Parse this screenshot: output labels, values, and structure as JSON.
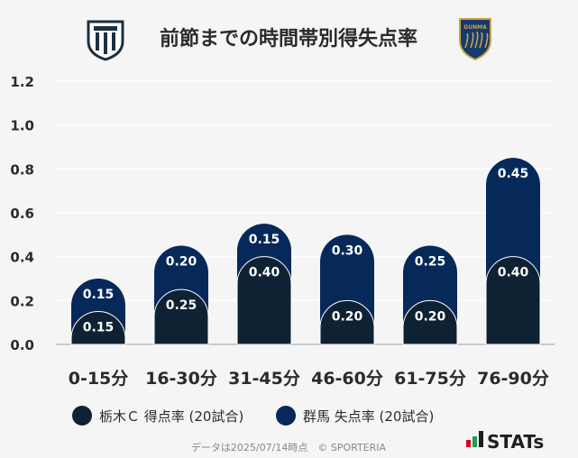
{
  "colors": {
    "home": "#0e2233",
    "away": "#06295a",
    "grid": "#ffffff",
    "axis": "#bbbbbb",
    "stats_red": "#d0021b",
    "stats_green": "#1f9d55",
    "emblem_home": "#1d3040",
    "emblem_away": "#173a6e",
    "emblem_gold": "#c8a445"
  },
  "icons": {
    "home_emblem": "tochigi-c-emblem-icon",
    "away_emblem": "gunma-emblem-icon",
    "stats_logo": "stats-logo-icon"
  },
  "away_emblem_text": "GUNMA",
  "chart_data": {
    "type": "bar",
    "stacked": true,
    "title": "前節までの時間帯別得失点率",
    "categories": [
      "0-15分",
      "16-30分",
      "31-45分",
      "46-60分",
      "61-75分",
      "76-90分"
    ],
    "series": [
      {
        "name": "栃木Ｃ 得点率 (20試合)",
        "values": [
          0.15,
          0.25,
          0.4,
          0.2,
          0.2,
          0.4
        ],
        "value_labels": [
          "0.15",
          "0.25",
          "0.40",
          "0.20",
          "0.20",
          "0.40"
        ]
      },
      {
        "name": "群馬 失点率 (20試合)",
        "values": [
          0.15,
          0.2,
          0.15,
          0.3,
          0.25,
          0.45
        ],
        "value_labels": [
          "0.15",
          "0.20",
          "0.15",
          "0.30",
          "0.25",
          "0.45"
        ]
      }
    ],
    "yticks": [
      "0.0",
      "0.2",
      "0.4",
      "0.6",
      "0.8",
      "1.0",
      "1.2"
    ],
    "ylim": [
      0,
      1.2
    ],
    "grid": true,
    "xlabel": "",
    "ylabel": ""
  },
  "footer": "データは2025/07/14時点　© SPORTERIA",
  "brand": "STATs"
}
